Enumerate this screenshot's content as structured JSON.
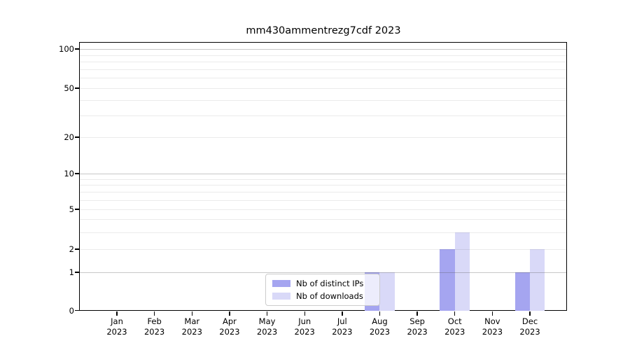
{
  "chart_data": {
    "type": "bar",
    "title": "mm430ammentrezg7cdf 2023",
    "categories": [
      "Jan",
      "Feb",
      "Mar",
      "Apr",
      "May",
      "Jun",
      "Jul",
      "Aug",
      "Sep",
      "Oct",
      "Nov",
      "Dec"
    ],
    "category_year": "2023",
    "series": [
      {
        "name": "Nb of distinct IPs",
        "color": "#a5a5f0",
        "values": [
          0,
          0,
          0,
          0,
          0,
          0,
          0,
          1,
          0,
          2,
          0,
          1
        ]
      },
      {
        "name": "Nb of downloads",
        "color": "#d9d9f8",
        "values": [
          0,
          0,
          0,
          0,
          0,
          0,
          0,
          1,
          0,
          3,
          0,
          2
        ]
      }
    ],
    "y_axis": {
      "scale": "log-like with zero baseline",
      "tick_labels": [
        "100",
        "50",
        "20",
        "10",
        "5",
        "2",
        "1",
        "0"
      ],
      "tick_values": [
        100,
        50,
        20,
        10,
        5,
        2,
        1,
        0
      ],
      "range": [
        0,
        110
      ]
    },
    "legend": {
      "position": "bottom-center",
      "entries": [
        "Nb of distinct IPs",
        "Nb of downloads"
      ]
    },
    "grid": true
  }
}
